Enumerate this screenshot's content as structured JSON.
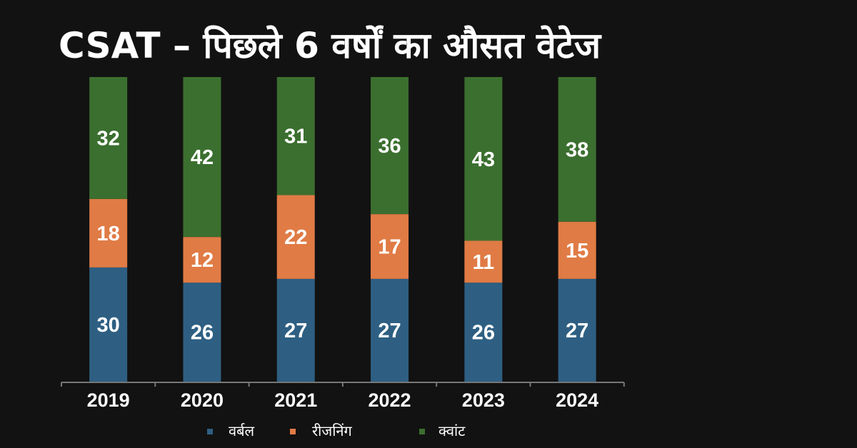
{
  "title": "CSAT – पिछले 6 वर्षों का औसत वेटेज",
  "chart_data": {
    "type": "bar",
    "stacked": true,
    "categories": [
      "2019",
      "2020",
      "2021",
      "2022",
      "2023",
      "2024"
    ],
    "series": [
      {
        "name": "वर्बल",
        "color": "#2e5f82",
        "values": [
          30,
          26,
          27,
          27,
          26,
          27
        ]
      },
      {
        "name": "रीजनिंग",
        "color": "#e07b45",
        "values": [
          18,
          12,
          22,
          17,
          11,
          15
        ]
      },
      {
        "name": "क्वांट",
        "color": "#3b6f2f",
        "values": [
          32,
          42,
          31,
          36,
          43,
          38
        ]
      }
    ],
    "ylim": [
      0,
      80
    ],
    "grid": false,
    "legend": "bottom",
    "data_labels": true
  }
}
